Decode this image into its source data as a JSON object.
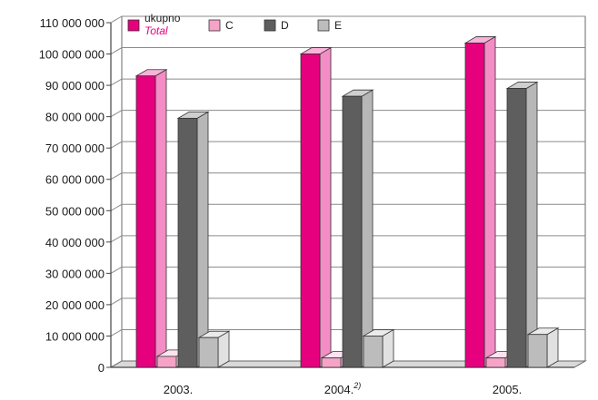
{
  "chart_data": {
    "type": "bar",
    "categories": [
      "2003.",
      "2004.",
      "2005."
    ],
    "category_footnotes": [
      "",
      "2)",
      ""
    ],
    "series": [
      {
        "name": "ukupno",
        "name_alt": "Total",
        "color": "#e6007e",
        "values": [
          93000000,
          100000000,
          103500000
        ]
      },
      {
        "name": "C",
        "color": "#f5a3c7",
        "values": [
          3500000,
          3000000,
          3000000
        ]
      },
      {
        "name": "D",
        "color": "#5e5e5e",
        "values": [
          79500000,
          86500000,
          89000000
        ]
      },
      {
        "name": "E",
        "color": "#bcbcbc",
        "values": [
          9500000,
          10000000,
          10500000
        ]
      }
    ],
    "yticks": [
      "0",
      "10 000 000",
      "20 000 000",
      "30 000 000",
      "40 000 000",
      "50 000 000",
      "60 000 000",
      "70 000 000",
      "80 000 000",
      "90 000 000",
      "100 000 000",
      "110 000 000"
    ],
    "ylim": [
      0,
      110000000
    ],
    "grid": true,
    "legend_position": "top-left"
  }
}
